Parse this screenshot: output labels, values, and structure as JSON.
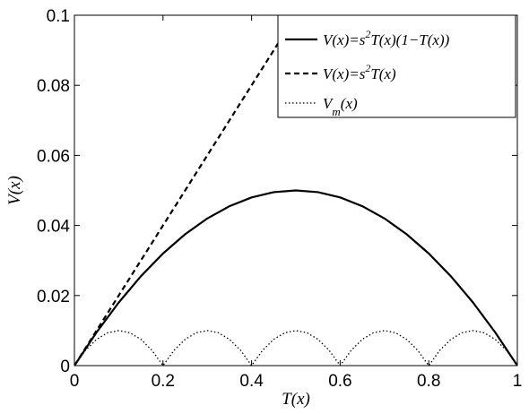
{
  "chart_data": {
    "type": "line",
    "xlabel": "T(x)",
    "ylabel": "V(x)",
    "xlim": [
      0,
      1
    ],
    "ylim": [
      0,
      0.1
    ],
    "x_ticks": [
      "0",
      "0.2",
      "0.4",
      "0.6",
      "0.8",
      "1"
    ],
    "y_ticks": [
      "0",
      "0.02",
      "0.04",
      "0.06",
      "0.08",
      "0.1"
    ],
    "grid": false,
    "legend_position": "top-right",
    "series": [
      {
        "name": "V(x)=s²T(x)(1−T(x))",
        "style": "solid",
        "x": [
          0,
          0.05,
          0.1,
          0.15,
          0.2,
          0.25,
          0.3,
          0.35,
          0.4,
          0.45,
          0.5,
          0.55,
          0.6,
          0.65,
          0.7,
          0.75,
          0.8,
          0.85,
          0.9,
          0.95,
          1
        ],
        "y": [
          0,
          0.0095,
          0.018,
          0.0255,
          0.032,
          0.0375,
          0.042,
          0.0455,
          0.048,
          0.0495,
          0.05,
          0.0495,
          0.048,
          0.0455,
          0.042,
          0.0375,
          0.032,
          0.0255,
          0.018,
          0.0095,
          0
        ]
      },
      {
        "name": "V(x)=s²T(x)",
        "style": "dashed",
        "x": [
          0,
          0.2,
          0.4,
          0.5
        ],
        "y": [
          0,
          0.04,
          0.08,
          0.1
        ]
      },
      {
        "name": "V_m(x)",
        "style": "dotted",
        "x": [
          0,
          0.025,
          0.05,
          0.075,
          0.1,
          0.125,
          0.15,
          0.175,
          0.2,
          0.225,
          0.25,
          0.275,
          0.3,
          0.325,
          0.35,
          0.375,
          0.4,
          0.425,
          0.45,
          0.475,
          0.5,
          0.525,
          0.55,
          0.575,
          0.6,
          0.625,
          0.65,
          0.675,
          0.7,
          0.725,
          0.75,
          0.775,
          0.8,
          0.825,
          0.85,
          0.875,
          0.9,
          0.925,
          0.95,
          0.975,
          1
        ],
        "y": [
          0,
          0.004375,
          0.0075,
          0.009375,
          0.01,
          0.009375,
          0.0075,
          0.004375,
          0,
          0.004375,
          0.0075,
          0.009375,
          0.01,
          0.009375,
          0.0075,
          0.004375,
          0,
          0.004375,
          0.0075,
          0.009375,
          0.01,
          0.009375,
          0.0075,
          0.004375,
          0,
          0.004375,
          0.0075,
          0.009375,
          0.01,
          0.009375,
          0.0075,
          0.004375,
          0,
          0.004375,
          0.0075,
          0.009375,
          0.01,
          0.009375,
          0.0075,
          0.004375,
          0
        ]
      }
    ],
    "legend": {
      "entries": [
        {
          "base": "V(x)=s",
          "sup": "2",
          "rest": "T(x)(1−T(x))",
          "style": "solid"
        },
        {
          "base": "V(x)=s",
          "sup": "2",
          "rest": "T(x)",
          "style": "dashed"
        },
        {
          "base": "V",
          "sub": "m",
          "rest": "(x)",
          "style": "dotted"
        }
      ]
    }
  }
}
